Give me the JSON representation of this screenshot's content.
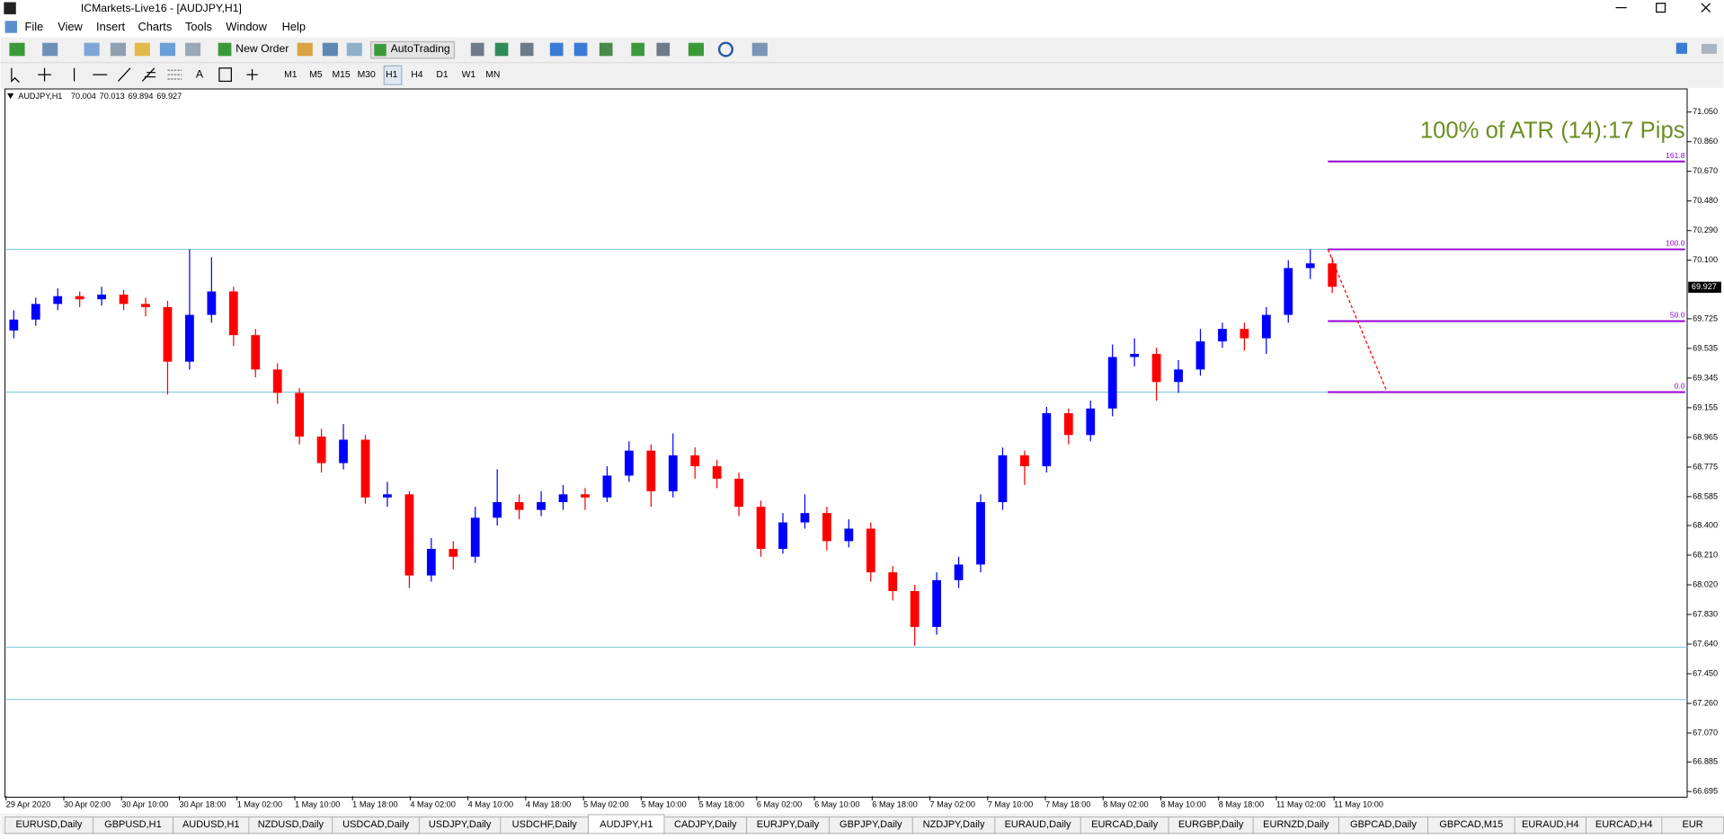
{
  "window": {
    "title": "ICMarkets-Live16 - [AUDJPY,H1]"
  },
  "menu": [
    "File",
    "View",
    "Insert",
    "Charts",
    "Tools",
    "Window",
    "Help"
  ],
  "toolbar": {
    "new_order": "New Order",
    "auto_trading": "AutoTrading",
    "text_tool": "A",
    "timeframes": [
      "M1",
      "M5",
      "M15",
      "M30",
      "H1",
      "H4",
      "D1",
      "W1",
      "MN"
    ]
  },
  "chart_data": {
    "type": "candlestick",
    "symbol": "AUDJPY,H1",
    "ohlc": [
      70.004,
      70.013,
      69.894,
      69.927
    ],
    "bull_color": "#0000ff",
    "bear_color": "#ff0000",
    "candles": [
      [
        69.65,
        69.78,
        69.6,
        69.72
      ],
      [
        69.72,
        69.86,
        69.68,
        69.82
      ],
      [
        69.82,
        69.92,
        69.78,
        69.87
      ],
      [
        69.87,
        69.9,
        69.8,
        69.85
      ],
      [
        69.85,
        69.93,
        69.81,
        69.88
      ],
      [
        69.88,
        69.91,
        69.78,
        69.82
      ],
      [
        69.82,
        69.86,
        69.74,
        69.8
      ],
      [
        69.8,
        69.84,
        69.24,
        69.45
      ],
      [
        69.45,
        70.17,
        69.4,
        69.75
      ],
      [
        69.75,
        70.12,
        69.7,
        69.9
      ],
      [
        69.9,
        69.93,
        69.55,
        69.62
      ],
      [
        69.62,
        69.66,
        69.35,
        69.4
      ],
      [
        69.4,
        69.44,
        69.18,
        69.25
      ],
      [
        69.25,
        69.28,
        68.92,
        68.97
      ],
      [
        68.97,
        69.02,
        68.74,
        68.8
      ],
      [
        68.8,
        69.05,
        68.76,
        68.95
      ],
      [
        68.95,
        68.98,
        68.54,
        68.58
      ],
      [
        68.58,
        68.68,
        68.52,
        68.6
      ],
      [
        68.6,
        68.62,
        68.0,
        68.08
      ],
      [
        68.08,
        68.32,
        68.04,
        68.25
      ],
      [
        68.25,
        68.3,
        68.12,
        68.2
      ],
      [
        68.2,
        68.52,
        68.16,
        68.45
      ],
      [
        68.45,
        68.76,
        68.4,
        68.55
      ],
      [
        68.55,
        68.6,
        68.44,
        68.5
      ],
      [
        68.5,
        68.62,
        68.46,
        68.55
      ],
      [
        68.55,
        68.66,
        68.5,
        68.6
      ],
      [
        68.6,
        68.64,
        68.5,
        68.58
      ],
      [
        68.58,
        68.78,
        68.55,
        68.72
      ],
      [
        68.72,
        68.94,
        68.68,
        68.88
      ],
      [
        68.88,
        68.92,
        68.52,
        68.62
      ],
      [
        68.62,
        68.99,
        68.58,
        68.85
      ],
      [
        68.85,
        68.9,
        68.7,
        68.78
      ],
      [
        68.78,
        68.82,
        68.64,
        68.7
      ],
      [
        68.7,
        68.74,
        68.46,
        68.52
      ],
      [
        68.52,
        68.56,
        68.2,
        68.25
      ],
      [
        68.25,
        68.48,
        68.22,
        68.42
      ],
      [
        68.42,
        68.6,
        68.38,
        68.48
      ],
      [
        68.48,
        68.52,
        68.24,
        68.3
      ],
      [
        68.3,
        68.44,
        68.26,
        68.38
      ],
      [
        68.38,
        68.42,
        68.04,
        68.1
      ],
      [
        68.1,
        68.14,
        67.92,
        67.98
      ],
      [
        67.98,
        68.02,
        67.63,
        67.75
      ],
      [
        67.75,
        68.1,
        67.7,
        68.05
      ],
      [
        68.05,
        68.2,
        68.0,
        68.15
      ],
      [
        68.15,
        68.6,
        68.1,
        68.55
      ],
      [
        68.55,
        68.9,
        68.5,
        68.85
      ],
      [
        68.85,
        68.88,
        68.66,
        68.78
      ],
      [
        68.78,
        69.16,
        68.74,
        69.12
      ],
      [
        69.12,
        69.15,
        68.92,
        68.98
      ],
      [
        68.98,
        69.2,
        68.94,
        69.15
      ],
      [
        69.15,
        69.56,
        69.1,
        69.48
      ],
      [
        69.48,
        69.6,
        69.42,
        69.5
      ],
      [
        69.5,
        69.54,
        69.2,
        69.32
      ],
      [
        69.32,
        69.46,
        69.25,
        69.4
      ],
      [
        69.4,
        69.66,
        69.36,
        69.58
      ],
      [
        69.58,
        69.7,
        69.54,
        69.66
      ],
      [
        69.66,
        69.7,
        69.52,
        69.6
      ],
      [
        69.6,
        69.8,
        69.5,
        69.75
      ],
      [
        69.75,
        70.1,
        69.7,
        70.05
      ],
      [
        70.05,
        70.17,
        69.98,
        70.08
      ],
      [
        70.08,
        70.12,
        69.89,
        69.93
      ]
    ],
    "ylim": [
      66.666,
      71.191
    ],
    "yticks": [
      {
        "value": 71.05,
        "label": "71.050"
      },
      {
        "value": 70.86,
        "label": "70.860"
      },
      {
        "value": 70.67,
        "label": "70.670"
      },
      {
        "value": 70.48,
        "label": "70.480"
      },
      {
        "value": 70.29,
        "label": "70.290"
      },
      {
        "value": 70.1,
        "label": "70.100"
      },
      {
        "value": 69.725,
        "label": "69.725"
      },
      {
        "value": 69.535,
        "label": "69.535"
      },
      {
        "value": 69.345,
        "label": "69.345"
      },
      {
        "value": 69.155,
        "label": "69.155"
      },
      {
        "value": 68.965,
        "label": "68.965"
      },
      {
        "value": 68.775,
        "label": "68.775"
      },
      {
        "value": 68.585,
        "label": "68.585"
      },
      {
        "value": 68.4,
        "label": "68.400"
      },
      {
        "value": 68.21,
        "label": "68.210"
      },
      {
        "value": 68.02,
        "label": "68.020"
      },
      {
        "value": 67.83,
        "label": "67.830"
      },
      {
        "value": 67.64,
        "label": "67.640"
      },
      {
        "value": 67.45,
        "label": "67.450"
      },
      {
        "value": 67.26,
        "label": "67.260"
      },
      {
        "value": 67.07,
        "label": "67.070"
      },
      {
        "value": 66.885,
        "label": "66.885"
      },
      {
        "value": 66.695,
        "label": "66.695"
      }
    ],
    "current_price": 69.927,
    "categories": [
      "29 Apr 2020",
      "30 Apr 02:00",
      "30 Apr 10:00",
      "30 Apr 18:00",
      "1 May 02:00",
      "1 May 10:00",
      "1 May 18:00",
      "4 May 02:00",
      "4 May 10:00",
      "4 May 18:00",
      "5 May 02:00",
      "5 May 10:00",
      "5 May 18:00",
      "6 May 02:00",
      "6 May 10:00",
      "6 May 18:00",
      "7 May 02:00",
      "7 May 10:00",
      "7 May 18:00",
      "8 May 02:00",
      "8 May 10:00",
      "8 May 18:00",
      "11 May 02:00",
      "11 May 10:00"
    ],
    "levels": {
      "values": [
        70.17,
        69.255,
        67.62,
        67.285
      ],
      "color": "#87cedb"
    },
    "fibonacci": {
      "labels": [
        "161.8",
        "100.0",
        "50.0",
        "0.0"
      ],
      "prices": [
        70.733,
        70.17,
        69.71,
        69.255
      ],
      "color": "#9400d3"
    },
    "projection": {
      "start": 70.17,
      "end": 69.255,
      "color": "#ff0000"
    },
    "annotation": {
      "text": "100% of ATR (14):17 Pips",
      "color": "#6b8e23"
    }
  },
  "tabs": [
    "EURUSD,Daily",
    "GBPUSD,H1",
    "AUDUSD,H1",
    "NZDUSD,Daily",
    "USDCAD,Daily",
    "USDJPY,Daily",
    "USDCHF,Daily",
    "AUDJPY,H1",
    "CADJPY,Daily",
    "EURJPY,Daily",
    "GBPJPY,Daily",
    "NZDJPY,Daily",
    "EURAUD,Daily",
    "EURCAD,Daily",
    "EURGBP,Daily",
    "EURNZD,Daily",
    "GBPCAD,Daily",
    "GBPCAD,M15",
    "EURAUD,H4",
    "EURCAD,H4",
    "EUR"
  ],
  "active_tab": 7
}
